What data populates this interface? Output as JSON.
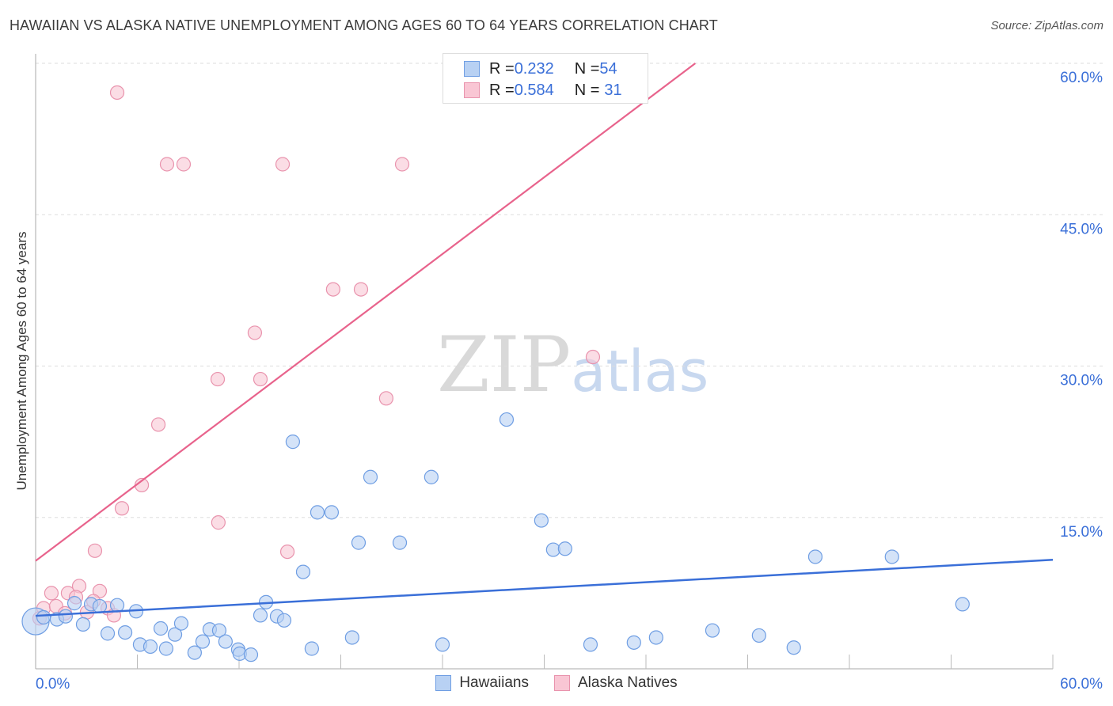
{
  "title": "HAWAIIAN VS ALASKA NATIVE UNEMPLOYMENT AMONG AGES 60 TO 64 YEARS CORRELATION CHART",
  "source": "Source: ZipAtlas.com",
  "watermark": {
    "a": "ZIP",
    "b": "atlas"
  },
  "colors": {
    "blue": "#3a6fd8",
    "blue_fill": "#b8d1f3",
    "pink": "#e8638c",
    "pink_fill": "#f9c6d4",
    "axis_label": "#3a6fd8"
  },
  "legend": [
    {
      "r_label": "R = ",
      "r": "0.232",
      "n_label": "N = ",
      "n": "54"
    },
    {
      "r_label": "R = ",
      "r": "0.584",
      "n_label": "N = ",
      "n": "31"
    }
  ],
  "chart_data": {
    "type": "scatter",
    "title": "HAWAIIAN VS ALASKA NATIVE UNEMPLOYMENT AMONG AGES 60 TO 64 YEARS CORRELATION CHART",
    "xlabel": "",
    "ylabel": "Unemployment Among Ages 60 to 64 years",
    "xlim": [
      0,
      60
    ],
    "ylim": [
      0,
      62
    ],
    "x_tick_labels": [
      "0.0%",
      "60.0%"
    ],
    "y_ticks": [
      15,
      30,
      45,
      60
    ],
    "y_tick_labels": [
      "15.0%",
      "30.0%",
      "45.0%",
      "60.0%"
    ],
    "grid": true,
    "legend_position": "bottom",
    "series": [
      {
        "name": "Hawaiians",
        "trend": {
          "intercept": 5.25,
          "slope": 0.0925
        },
        "points": [
          [
            0,
            4.7
          ],
          [
            0.47,
            5.1
          ],
          [
            1.26,
            4.9
          ],
          [
            1.77,
            5.2
          ],
          [
            2.29,
            6.5
          ],
          [
            2.8,
            4.4
          ],
          [
            3.27,
            6.4
          ],
          [
            3.78,
            6.2
          ],
          [
            4.25,
            3.5
          ],
          [
            4.81,
            6.3
          ],
          [
            5.28,
            3.6
          ],
          [
            5.93,
            5.7
          ],
          [
            6.16,
            2.4
          ],
          [
            6.77,
            2.2
          ],
          [
            7.38,
            4.0
          ],
          [
            7.7,
            2.0
          ],
          [
            8.22,
            3.4
          ],
          [
            8.59,
            4.5
          ],
          [
            9.38,
            1.6
          ],
          [
            9.85,
            2.7
          ],
          [
            10.27,
            3.9
          ],
          [
            10.83,
            3.8
          ],
          [
            11.2,
            2.7
          ],
          [
            11.95,
            1.9
          ],
          [
            12.04,
            1.5
          ],
          [
            12.7,
            1.4
          ],
          [
            13.26,
            5.3
          ],
          [
            13.59,
            6.6
          ],
          [
            14.24,
            5.2
          ],
          [
            14.66,
            4.8
          ],
          [
            15.17,
            22.5
          ],
          [
            15.78,
            9.6
          ],
          [
            16.29,
            2.0
          ],
          [
            16.62,
            15.5
          ],
          [
            17.46,
            15.5
          ],
          [
            18.67,
            3.1
          ],
          [
            19.05,
            12.5
          ],
          [
            19.75,
            19.0
          ],
          [
            21.48,
            12.5
          ],
          [
            23.34,
            19.0
          ],
          [
            24.0,
            2.4
          ],
          [
            27.78,
            24.7
          ],
          [
            29.83,
            14.7
          ],
          [
            30.53,
            11.8
          ],
          [
            31.23,
            11.9
          ],
          [
            32.73,
            2.4
          ],
          [
            35.29,
            2.6
          ],
          [
            36.6,
            3.1
          ],
          [
            39.92,
            3.8
          ],
          [
            42.67,
            3.3
          ],
          [
            44.72,
            2.1
          ],
          [
            45.99,
            11.1
          ],
          [
            50.51,
            11.1
          ],
          [
            54.67,
            6.4
          ]
        ]
      },
      {
        "name": "Alaska Natives",
        "trend": {
          "intercept": 10.7,
          "slope": 1.267
        },
        "points": [
          [
            4.81,
            57.1
          ],
          [
            7.75,
            50.0
          ],
          [
            8.73,
            50.0
          ],
          [
            14.57,
            50.0
          ],
          [
            21.62,
            50.0
          ],
          [
            17.55,
            37.6
          ],
          [
            19.19,
            37.6
          ],
          [
            12.93,
            33.3
          ],
          [
            10.74,
            28.7
          ],
          [
            13.26,
            28.7
          ],
          [
            20.68,
            26.8
          ],
          [
            32.87,
            30.9
          ],
          [
            7.24,
            24.2
          ],
          [
            6.26,
            18.2
          ],
          [
            5.09,
            15.9
          ],
          [
            10.78,
            14.5
          ],
          [
            14.85,
            11.6
          ],
          [
            3.5,
            11.7
          ],
          [
            0.93,
            7.5
          ],
          [
            1.91,
            7.5
          ],
          [
            2.57,
            8.2
          ],
          [
            3.78,
            7.7
          ],
          [
            2.38,
            7.1
          ],
          [
            0.47,
            6.0
          ],
          [
            1.21,
            6.2
          ],
          [
            1.73,
            5.5
          ],
          [
            3.03,
            5.6
          ],
          [
            3.41,
            6.7
          ],
          [
            4.25,
            6.0
          ],
          [
            4.62,
            5.3
          ],
          [
            0.23,
            5.0
          ]
        ]
      }
    ]
  }
}
